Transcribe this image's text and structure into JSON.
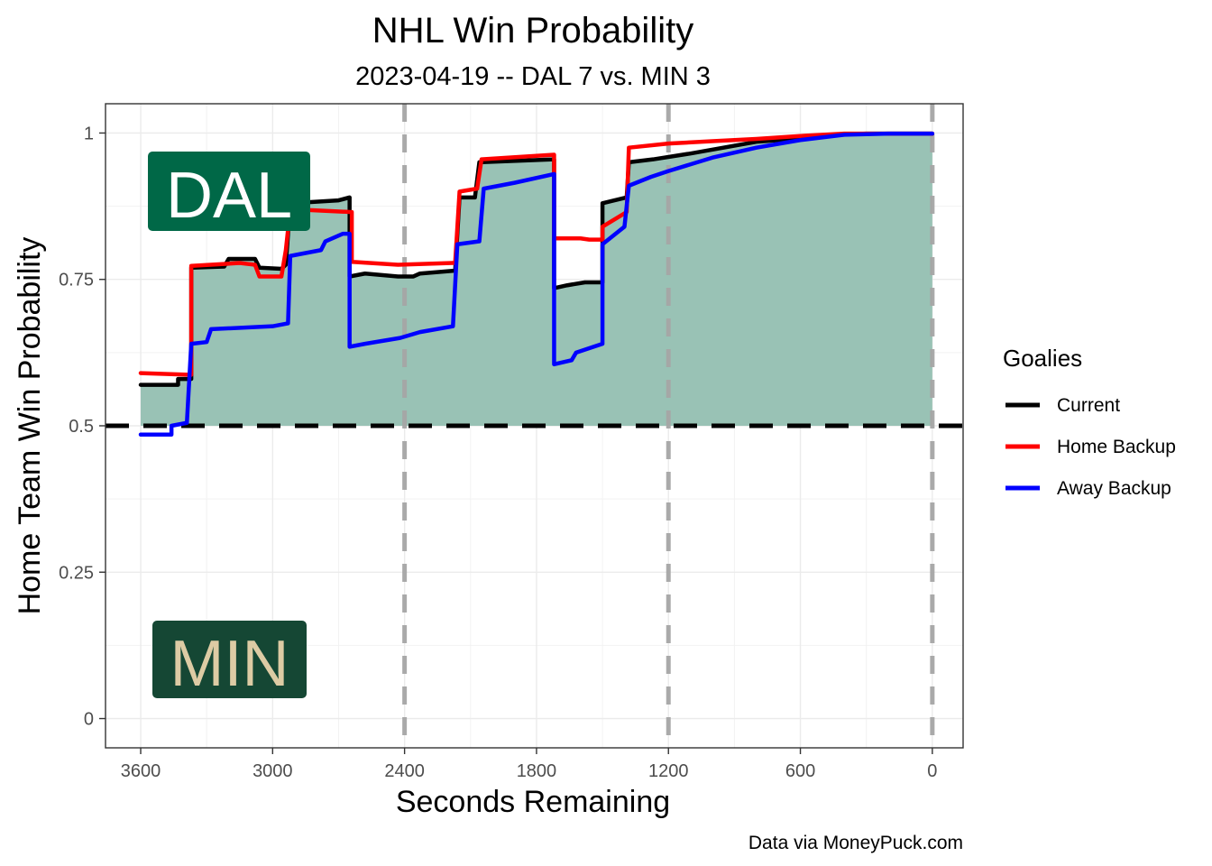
{
  "chart_data": {
    "type": "line",
    "title": "NHL Win Probability",
    "subtitle": "2023-04-19 -- DAL 7 vs. MIN 3",
    "xlabel": "Seconds Remaining",
    "ylabel": "Home Team Win Probability",
    "caption": "Data via MoneyPuck.com",
    "xlim": [
      3760,
      -140
    ],
    "ylim": [
      -0.05,
      1.05
    ],
    "x_ticks": [
      3600,
      3000,
      2400,
      1800,
      1200,
      600,
      0
    ],
    "x_tick_labels": [
      "3600",
      "3000",
      "2400",
      "1800",
      "1200",
      "600",
      "0"
    ],
    "y_ticks": [
      0,
      0.25,
      0.5,
      0.75,
      1
    ],
    "y_tick_labels": [
      "0",
      "0.25",
      "0.5",
      "0.75",
      "1"
    ],
    "grid": true,
    "reference_lines": {
      "horizontal": {
        "y": 0.5,
        "style": "dashed",
        "color": "#000000"
      },
      "vertical": {
        "x": [
          2400,
          1200,
          0
        ],
        "style": "dashed",
        "color": "#a6a6a6"
      }
    },
    "legend": {
      "title": "Goalies",
      "position": "right",
      "entries": [
        "Current",
        "Home Backup",
        "Away Backup"
      ]
    },
    "team_labels": {
      "home": {
        "text": "DAL",
        "bg": "#006847",
        "fg": "#ffffff"
      },
      "away": {
        "text": "MIN",
        "bg": "#154734",
        "fg": "#DDCBA4"
      }
    },
    "fill_color": "#99C2B5",
    "series": [
      {
        "name": "Current",
        "color": "#000000",
        "points": [
          [
            3600,
            0.57
          ],
          [
            3430,
            0.57
          ],
          [
            3430,
            0.58
          ],
          [
            3370,
            0.58
          ],
          [
            3370,
            0.77
          ],
          [
            3220,
            0.772
          ],
          [
            3200,
            0.785
          ],
          [
            3080,
            0.785
          ],
          [
            3060,
            0.77
          ],
          [
            2960,
            0.768
          ],
          [
            2940,
            0.775
          ],
          [
            2920,
            0.88
          ],
          [
            2700,
            0.885
          ],
          [
            2650,
            0.89
          ],
          [
            2650,
            0.755
          ],
          [
            2580,
            0.76
          ],
          [
            2430,
            0.755
          ],
          [
            2360,
            0.755
          ],
          [
            2330,
            0.76
          ],
          [
            2170,
            0.765
          ],
          [
            2150,
            0.89
          ],
          [
            2080,
            0.89
          ],
          [
            2060,
            0.95
          ],
          [
            1720,
            0.955
          ],
          [
            1720,
            0.735
          ],
          [
            1660,
            0.74
          ],
          [
            1580,
            0.745
          ],
          [
            1500,
            0.745
          ],
          [
            1500,
            0.88
          ],
          [
            1390,
            0.89
          ],
          [
            1380,
            0.95
          ],
          [
            1270,
            0.955
          ],
          [
            1100,
            0.965
          ],
          [
            950,
            0.975
          ],
          [
            800,
            0.985
          ],
          [
            620,
            0.99
          ],
          [
            450,
            0.997
          ],
          [
            300,
            0.999
          ],
          [
            0,
            0.999
          ]
        ]
      },
      {
        "name": "Home Backup",
        "color": "#FF0000",
        "points": [
          [
            3600,
            0.59
          ],
          [
            3370,
            0.587
          ],
          [
            3370,
            0.773
          ],
          [
            3150,
            0.778
          ],
          [
            3080,
            0.775
          ],
          [
            3060,
            0.755
          ],
          [
            2960,
            0.755
          ],
          [
            2940,
            0.8
          ],
          [
            2920,
            0.87
          ],
          [
            2640,
            0.865
          ],
          [
            2640,
            0.78
          ],
          [
            2430,
            0.775
          ],
          [
            2180,
            0.778
          ],
          [
            2170,
            0.778
          ],
          [
            2150,
            0.9
          ],
          [
            2070,
            0.905
          ],
          [
            2050,
            0.955
          ],
          [
            1720,
            0.963
          ],
          [
            1720,
            0.82
          ],
          [
            1600,
            0.82
          ],
          [
            1560,
            0.818
          ],
          [
            1500,
            0.818
          ],
          [
            1500,
            0.84
          ],
          [
            1390,
            0.865
          ],
          [
            1380,
            0.975
          ],
          [
            1200,
            0.982
          ],
          [
            1000,
            0.986
          ],
          [
            800,
            0.99
          ],
          [
            600,
            0.995
          ],
          [
            400,
            0.999
          ],
          [
            0,
            0.999
          ]
        ]
      },
      {
        "name": "Away Backup",
        "color": "#0000FF",
        "points": [
          [
            3600,
            0.485
          ],
          [
            3460,
            0.485
          ],
          [
            3460,
            0.5
          ],
          [
            3390,
            0.505
          ],
          [
            3370,
            0.64
          ],
          [
            3300,
            0.643
          ],
          [
            3280,
            0.665
          ],
          [
            3000,
            0.67
          ],
          [
            2930,
            0.675
          ],
          [
            2920,
            0.79
          ],
          [
            2780,
            0.8
          ],
          [
            2760,
            0.815
          ],
          [
            2680,
            0.828
          ],
          [
            2650,
            0.828
          ],
          [
            2650,
            0.635
          ],
          [
            2580,
            0.64
          ],
          [
            2420,
            0.65
          ],
          [
            2330,
            0.66
          ],
          [
            2180,
            0.67
          ],
          [
            2160,
            0.81
          ],
          [
            2060,
            0.815
          ],
          [
            2040,
            0.905
          ],
          [
            1900,
            0.915
          ],
          [
            1720,
            0.93
          ],
          [
            1720,
            0.605
          ],
          [
            1640,
            0.612
          ],
          [
            1620,
            0.625
          ],
          [
            1500,
            0.64
          ],
          [
            1500,
            0.81
          ],
          [
            1400,
            0.84
          ],
          [
            1380,
            0.91
          ],
          [
            1280,
            0.925
          ],
          [
            1200,
            0.935
          ],
          [
            1000,
            0.958
          ],
          [
            800,
            0.975
          ],
          [
            600,
            0.988
          ],
          [
            400,
            0.997
          ],
          [
            200,
            0.999
          ],
          [
            0,
            0.999
          ]
        ]
      }
    ]
  }
}
